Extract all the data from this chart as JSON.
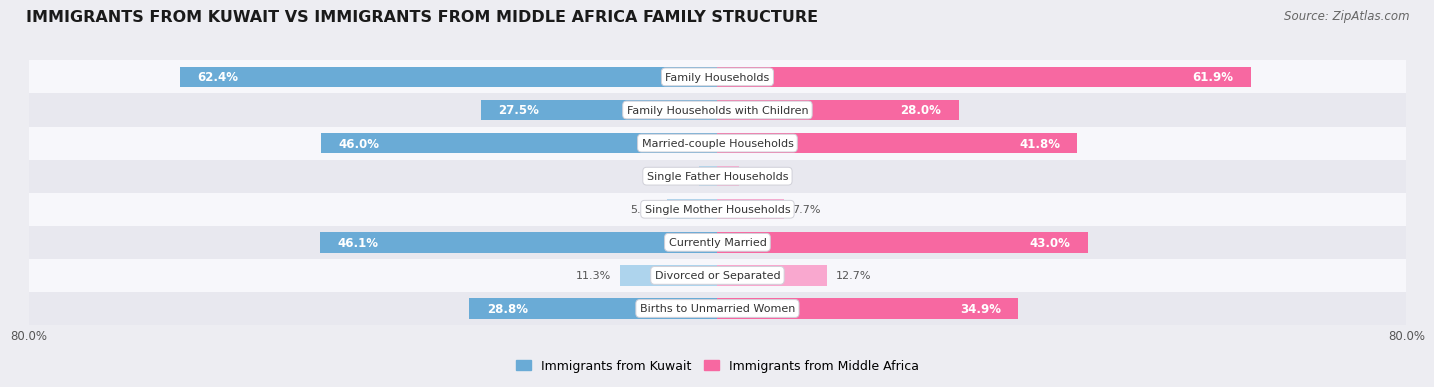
{
  "title": "IMMIGRANTS FROM KUWAIT VS IMMIGRANTS FROM MIDDLE AFRICA FAMILY STRUCTURE",
  "source": "Source: ZipAtlas.com",
  "categories": [
    "Family Households",
    "Family Households with Children",
    "Married-couple Households",
    "Single Father Households",
    "Single Mother Households",
    "Currently Married",
    "Divorced or Separated",
    "Births to Unmarried Women"
  ],
  "kuwait_values": [
    62.4,
    27.5,
    46.0,
    2.1,
    5.8,
    46.1,
    11.3,
    28.8
  ],
  "africa_values": [
    61.9,
    28.0,
    41.8,
    2.5,
    7.7,
    43.0,
    12.7,
    34.9
  ],
  "kuwait_color_large": "#6aabd6",
  "kuwait_color_small": "#aed4ed",
  "africa_color_large": "#f768a1",
  "africa_color_small": "#f9a8cf",
  "kuwait_label": "Immigrants from Kuwait",
  "africa_label": "Immigrants from Middle Africa",
  "axis_max": 80.0,
  "x_tick_label_left": "80.0%",
  "x_tick_label_right": "80.0%",
  "bg_color": "#ededf2",
  "row_bg_color": "#f7f7fb",
  "row_alt_bg_color": "#e8e8ef",
  "title_fontsize": 11.5,
  "source_fontsize": 8.5,
  "value_fontsize_inside": 8.5,
  "value_fontsize_outside": 8.0,
  "cat_fontsize": 8.0,
  "bar_height": 0.62,
  "large_threshold": 15
}
